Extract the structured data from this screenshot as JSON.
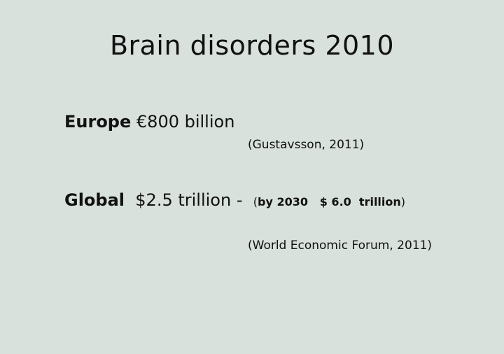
{
  "slide": {
    "title": "Brain disorders 2010",
    "europe": {
      "region": "Europe",
      "amount": "€800 billion",
      "citation": "(Gustavsson, 2011)"
    },
    "global": {
      "region": "Global",
      "amount": "$2.5 trillion",
      "separator": "-",
      "forecast_open": "(",
      "forecast": "by 2030   $ 6.0  trillion",
      "forecast_close": ")",
      "citation": "(World Economic Forum, 2011)"
    }
  }
}
